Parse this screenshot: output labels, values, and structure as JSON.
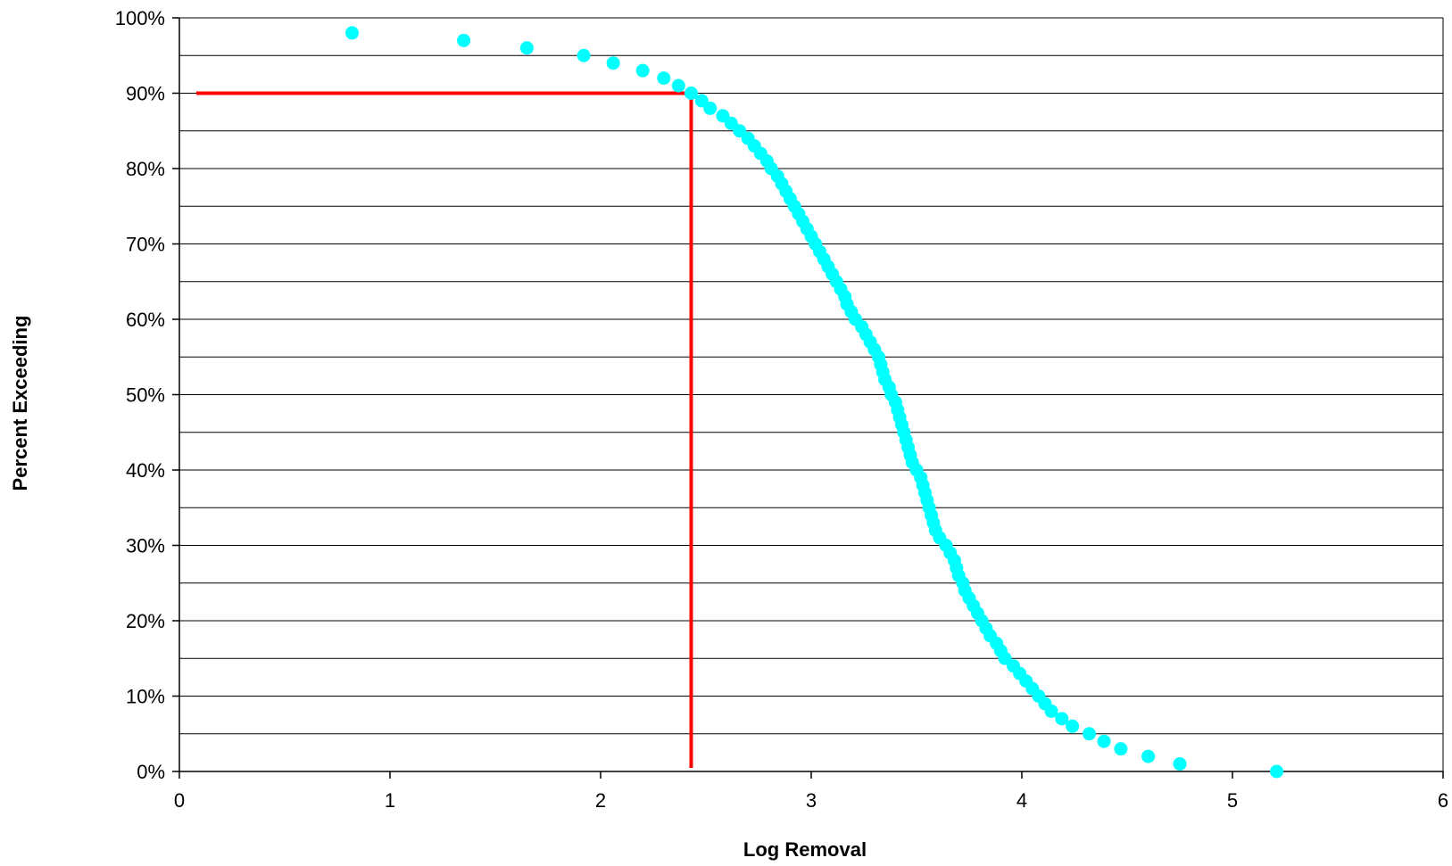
{
  "chart_data": {
    "type": "scatter",
    "title": "",
    "xlabel": "Log Removal",
    "ylabel": "Percent Exceeding",
    "xlim": [
      0,
      6
    ],
    "ylim": [
      0,
      100
    ],
    "x_ticks": [
      "0",
      "1",
      "2",
      "3",
      "4",
      "5",
      "6"
    ],
    "y_ticks": [
      "0%",
      "10%",
      "20%",
      "30%",
      "40%",
      "50%",
      "60%",
      "70%",
      "80%",
      "90%",
      "100%"
    ],
    "grid": "horizontal, every 5%",
    "colors": {
      "points": "#00FFFF",
      "reference_line": "#FF0000",
      "grid": "#000000"
    },
    "reference_line": {
      "x": 2.43,
      "y": 90,
      "x_start": 0.08,
      "y_end": 0
    },
    "series": [
      {
        "points": [
          [
            0.82,
            98
          ],
          [
            1.35,
            97
          ],
          [
            1.65,
            96
          ],
          [
            1.92,
            95
          ],
          [
            2.06,
            94
          ],
          [
            2.2,
            93
          ],
          [
            2.3,
            92
          ],
          [
            2.37,
            91
          ],
          [
            2.43,
            90
          ],
          [
            2.48,
            89
          ],
          [
            2.52,
            88
          ],
          [
            2.58,
            87
          ],
          [
            2.62,
            86
          ],
          [
            2.66,
            85
          ],
          [
            2.7,
            84
          ],
          [
            2.73,
            83
          ],
          [
            2.76,
            82
          ],
          [
            2.79,
            81
          ],
          [
            2.81,
            80
          ],
          [
            2.84,
            79
          ],
          [
            2.86,
            78
          ],
          [
            2.88,
            77
          ],
          [
            2.9,
            76
          ],
          [
            2.92,
            75
          ],
          [
            2.94,
            74
          ],
          [
            2.96,
            73
          ],
          [
            2.98,
            72
          ],
          [
            3.0,
            71
          ],
          [
            3.02,
            70
          ],
          [
            3.04,
            69
          ],
          [
            3.06,
            68
          ],
          [
            3.08,
            67
          ],
          [
            3.1,
            66
          ],
          [
            3.12,
            65
          ],
          [
            3.14,
            64
          ],
          [
            3.16,
            63
          ],
          [
            3.17,
            62
          ],
          [
            3.19,
            61
          ],
          [
            3.21,
            60
          ],
          [
            3.24,
            59
          ],
          [
            3.26,
            58
          ],
          [
            3.28,
            57
          ],
          [
            3.3,
            56
          ],
          [
            3.32,
            55
          ],
          [
            3.33,
            54
          ],
          [
            3.34,
            53
          ],
          [
            3.35,
            52
          ],
          [
            3.37,
            51
          ],
          [
            3.38,
            50
          ],
          [
            3.4,
            49
          ],
          [
            3.41,
            48
          ],
          [
            3.42,
            47
          ],
          [
            3.43,
            46
          ],
          [
            3.44,
            45
          ],
          [
            3.45,
            44
          ],
          [
            3.46,
            43
          ],
          [
            3.47,
            42
          ],
          [
            3.48,
            41
          ],
          [
            3.5,
            40
          ],
          [
            3.52,
            39
          ],
          [
            3.53,
            38
          ],
          [
            3.54,
            37
          ],
          [
            3.55,
            36
          ],
          [
            3.56,
            35
          ],
          [
            3.57,
            34
          ],
          [
            3.58,
            33
          ],
          [
            3.59,
            32
          ],
          [
            3.61,
            31
          ],
          [
            3.64,
            30
          ],
          [
            3.66,
            29
          ],
          [
            3.68,
            28
          ],
          [
            3.69,
            27
          ],
          [
            3.7,
            26
          ],
          [
            3.72,
            25
          ],
          [
            3.73,
            24
          ],
          [
            3.75,
            23
          ],
          [
            3.77,
            22
          ],
          [
            3.79,
            21
          ],
          [
            3.81,
            20
          ],
          [
            3.83,
            19
          ],
          [
            3.85,
            18
          ],
          [
            3.88,
            17
          ],
          [
            3.9,
            16
          ],
          [
            3.92,
            15
          ],
          [
            3.96,
            14
          ],
          [
            3.99,
            13
          ],
          [
            4.02,
            12
          ],
          [
            4.05,
            11
          ],
          [
            4.08,
            10
          ],
          [
            4.11,
            9
          ],
          [
            4.14,
            8
          ],
          [
            4.19,
            7
          ],
          [
            4.24,
            6
          ],
          [
            4.32,
            5
          ],
          [
            4.39,
            4
          ],
          [
            4.47,
            3
          ],
          [
            4.6,
            2
          ],
          [
            4.75,
            1
          ],
          [
            5.21,
            0
          ]
        ]
      }
    ]
  }
}
